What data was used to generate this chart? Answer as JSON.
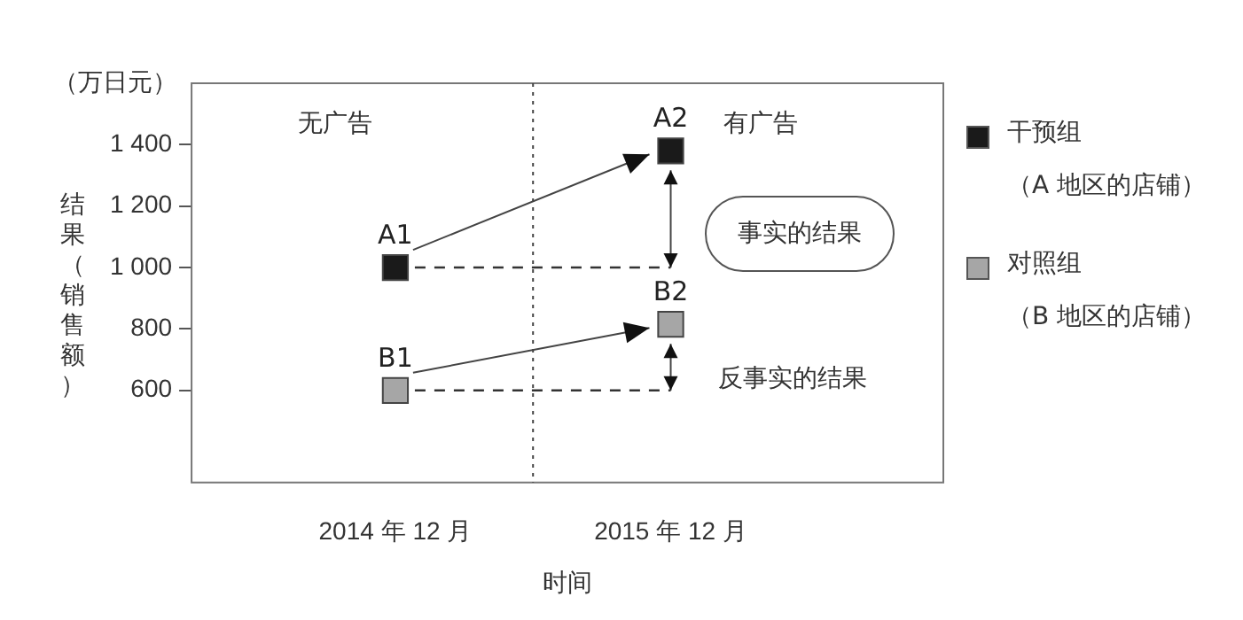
{
  "chart_data": {
    "type": "scatter",
    "xlabel": "时间",
    "ylabel": "结果（销售额）",
    "categories": [
      "2014 年 12 月",
      "2015 年 12 月"
    ],
    "series": [
      {
        "name": "干预组（A 地区的店铺）",
        "color": "#1a1a1a",
        "values": [
          1000,
          1380
        ],
        "value_labels": [
          "A1",
          "A2"
        ]
      },
      {
        "name": "对照组（B 地区的店铺）",
        "color": "#a6a6a6",
        "values": [
          600,
          815
        ],
        "value_labels": [
          "B1",
          "B2"
        ]
      },
      {
        "type": "line",
        "color": "#333333",
        "values": [
          1000,
          1000
        ],
        "line_style": "dashed",
        "marker": "none"
      },
      {
        "type": "line",
        "color": "#333333",
        "values": [
          600,
          600
        ],
        "line_style": "dashed",
        "marker": "none"
      }
    ],
    "ylim": [
      300,
      1600
    ],
    "yticks": [
      600,
      800,
      {
        "value": 1000,
        "label": "1 000"
      },
      {
        "value": 1200,
        "label": "1 200"
      },
      {
        "value": 1400,
        "label": "1 400"
      }
    ],
    "annotations": [
      "（万日元）",
      "无广告",
      "有广告",
      "事实的结果",
      "反事实的结果"
    ],
    "grid": false,
    "legend": "right",
    "marker": "square"
  }
}
